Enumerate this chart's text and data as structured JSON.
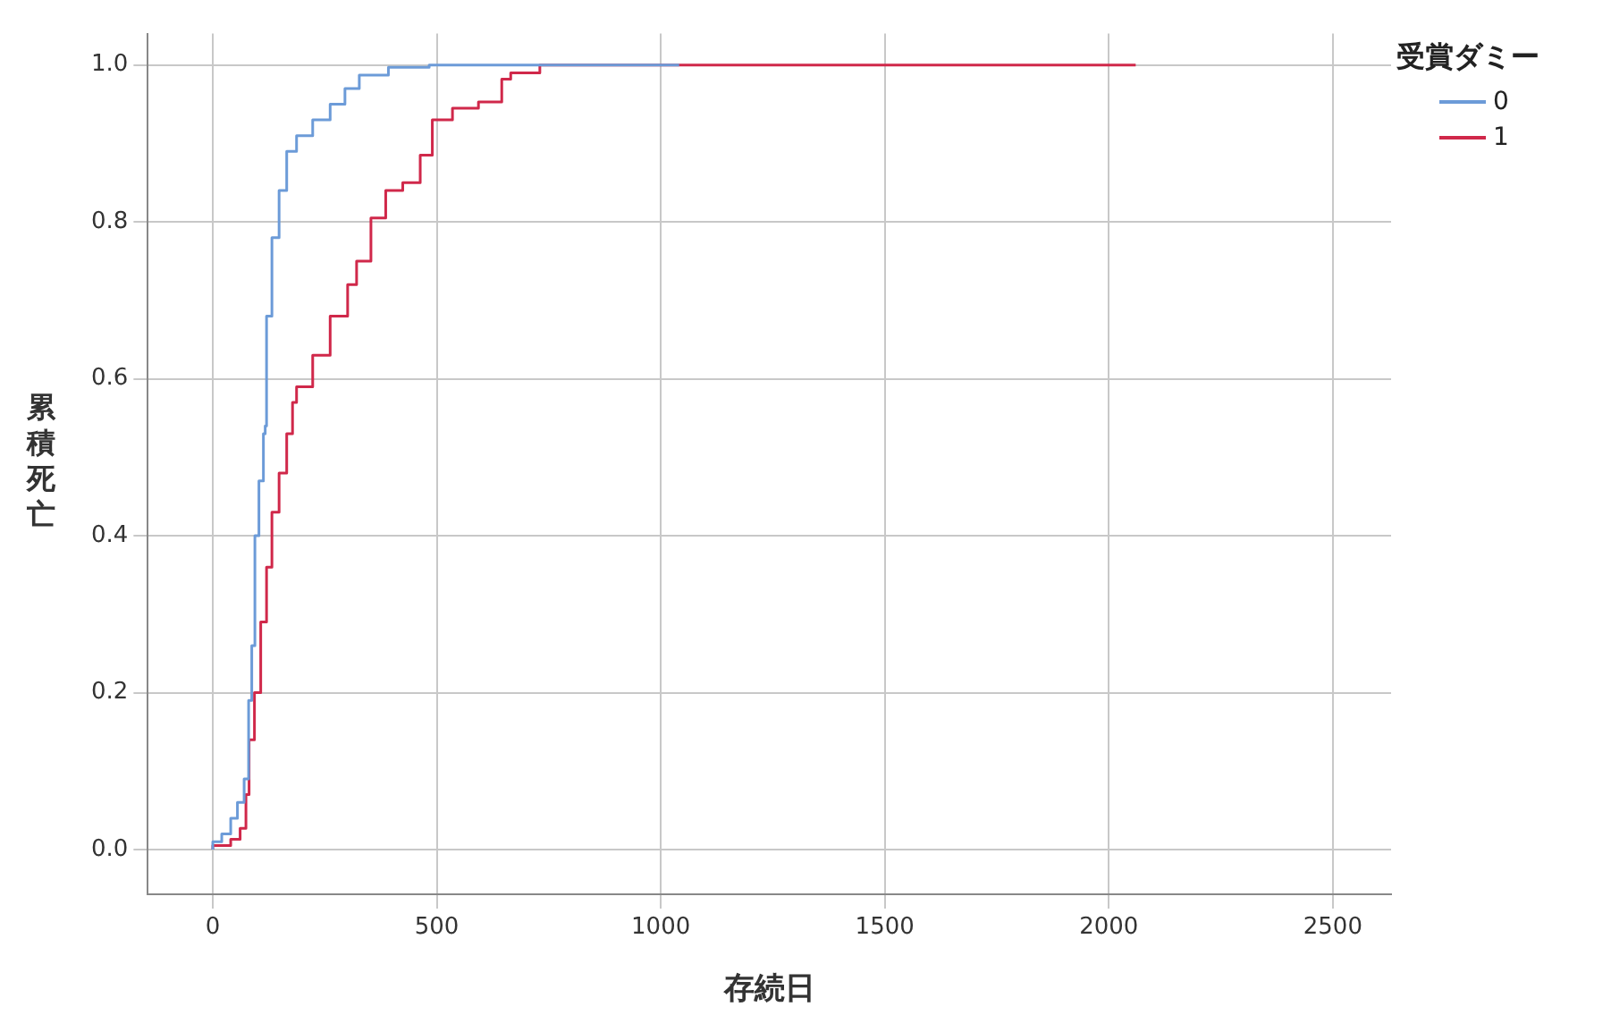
{
  "chart_data": {
    "type": "step",
    "xlabel": "存続日",
    "ylabel": "累積死亡",
    "legend_title": "受賞ダミー",
    "legend": "top right",
    "grid": true,
    "marker": "none",
    "line_style": "solid",
    "xlim": [
      -145,
      2630
    ],
    "ylim": [
      -0.057,
      1.04
    ],
    "xticks": [
      0,
      500,
      1000,
      1500,
      2000,
      2500
    ],
    "yticks": [
      {
        "value": 0,
        "label": "0.0"
      },
      {
        "value": 0.2,
        "label": "0.2"
      },
      {
        "value": 0.4,
        "label": "0.4"
      },
      {
        "value": 0.6,
        "label": "0.6"
      },
      {
        "value": 0.8,
        "label": "0.8"
      },
      {
        "value": 1,
        "label": "1.0"
      }
    ],
    "series": [
      {
        "name": "0",
        "color": "#6c9bd8",
        "x": [
          0,
          20,
          40,
          55,
          70,
          80,
          87,
          94,
          103,
          113,
          117,
          120,
          132,
          148,
          165,
          187,
          223,
          262,
          295,
          327,
          392,
          483,
          600,
          1041
        ],
        "values": [
          0,
          0.01,
          0.02,
          0.04,
          0.06,
          0.09,
          0.19,
          0.26,
          0.4,
          0.47,
          0.53,
          0.54,
          0.68,
          0.78,
          0.84,
          0.89,
          0.91,
          0.93,
          0.95,
          0.97,
          0.987,
          0.997,
          1,
          1
        ]
      },
      {
        "name": "1",
        "color": "#d0284a",
        "x": [
          0,
          40,
          61,
          74,
          81,
          93,
          107,
          120,
          132,
          148,
          165,
          178,
          187,
          223,
          262,
          301,
          321,
          353,
          386,
          424,
          463,
          490,
          535,
          593,
          645,
          665,
          730,
          1041,
          2060
        ],
        "values": [
          0,
          0.005,
          0.013,
          0.027,
          0.07,
          0.14,
          0.2,
          0.29,
          0.36,
          0.43,
          0.48,
          0.53,
          0.57,
          0.59,
          0.63,
          0.68,
          0.72,
          0.75,
          0.805,
          0.84,
          0.85,
          0.885,
          0.93,
          0.945,
          0.953,
          0.982,
          0.99,
          1,
          1
        ]
      }
    ]
  }
}
